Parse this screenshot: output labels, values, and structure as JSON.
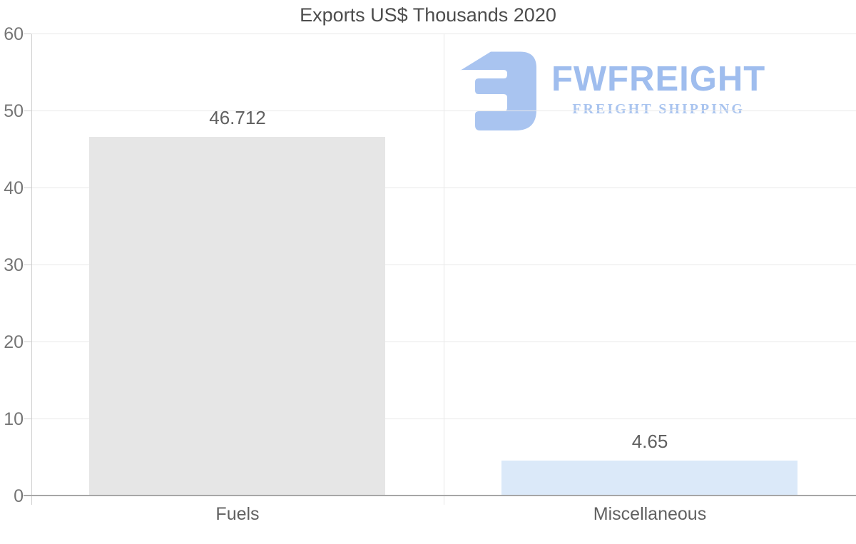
{
  "title": "Exports US$ Thousands 2020",
  "watermark": {
    "wordmark": "FWFREIGHT",
    "tagline": "FREIGHT SHIPPING",
    "wordmark_color": "#9fbdee",
    "tagline_color": "#a9c4ef",
    "icon_color": "#a9c4f0"
  },
  "chart_data": {
    "type": "bar",
    "title": "Exports US$ Thousands 2020",
    "categories": [
      "Fuels",
      "Miscellaneous"
    ],
    "values": [
      46.712,
      4.65
    ],
    "value_labels": [
      "46.712",
      "4.65"
    ],
    "bar_colors": [
      "#e6e6e6",
      "#dbe9f9"
    ],
    "xlabel": "",
    "ylabel": "",
    "ylim": [
      0,
      60
    ],
    "yticks": [
      0,
      10,
      20,
      30,
      40,
      50,
      60
    ],
    "grid": true,
    "legend": false,
    "styles": {
      "grid_color": "#e8e8e8",
      "axis_line_color": "#cfcfcf",
      "baseline_color": "#a6a6a6",
      "tick_label_color": "#757575",
      "value_label_color": "#616161",
      "category_label_color": "#616161",
      "title_color": "#4d4d4d"
    }
  }
}
